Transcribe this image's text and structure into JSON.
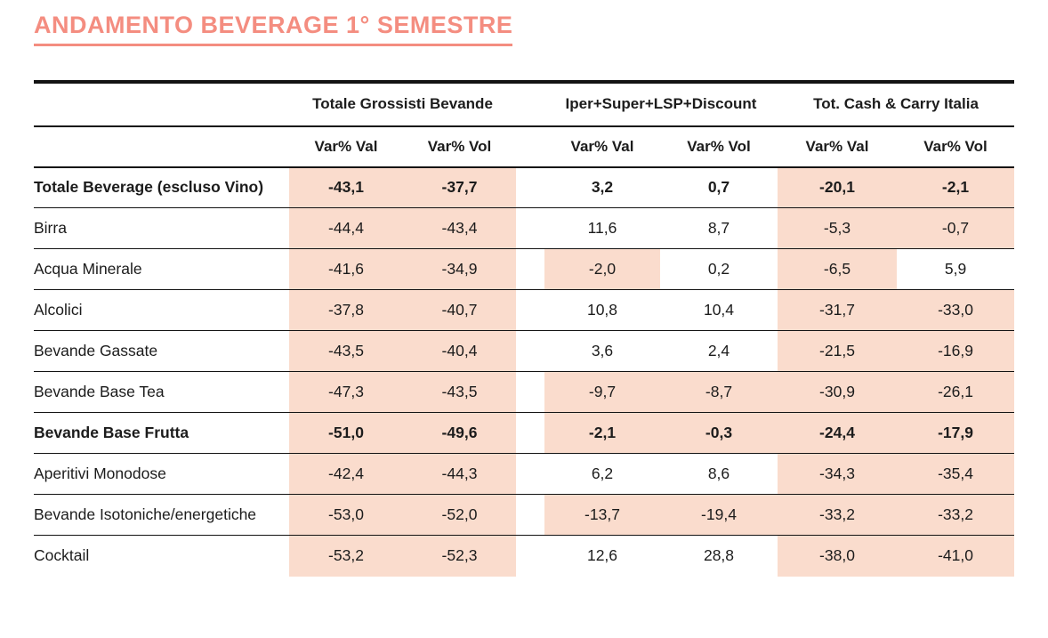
{
  "page_title": "ANDAMENTO BEVERAGE 1° SEMESTRE",
  "colors": {
    "accent_title": "#F48D80",
    "negative_highlight": "#FADCCD",
    "rule": "#131313",
    "text": "#1C1C1C"
  },
  "chart_data": {
    "type": "table",
    "title": "ANDAMENTO BEVERAGE 1° SEMESTRE",
    "decimal_separator": "comma",
    "highlight_rule": "cells with negative values have a peach background",
    "column_groups": [
      {
        "label": "Totale Grossisti Bevande",
        "subcolumns": [
          "Var% Val",
          "Var% Vol"
        ]
      },
      {
        "label": "Iper+Super+LSP+Discount",
        "subcolumns": [
          "Var% Val",
          "Var% Vol"
        ]
      },
      {
        "label": "Tot. Cash & Carry Italia",
        "subcolumns": [
          "Var% Val",
          "Var% Vol"
        ]
      }
    ],
    "rows": [
      {
        "label": "Totale Beverage (escluso Vino)",
        "bold": true,
        "values": [
          "-43,1",
          "-37,7",
          "3,2",
          "0,7",
          "-20,1",
          "-2,1"
        ]
      },
      {
        "label": "Birra",
        "bold": false,
        "values": [
          "-44,4",
          "-43,4",
          "11,6",
          "8,7",
          "-5,3",
          "-0,7"
        ]
      },
      {
        "label": "Acqua Minerale",
        "bold": false,
        "values": [
          "-41,6",
          "-34,9",
          "-2,0",
          "0,2",
          "-6,5",
          "5,9"
        ]
      },
      {
        "label": "Alcolici",
        "bold": false,
        "values": [
          "-37,8",
          "-40,7",
          "10,8",
          "10,4",
          "-31,7",
          "-33,0"
        ]
      },
      {
        "label": "Bevande Gassate",
        "bold": false,
        "values": [
          "-43,5",
          "-40,4",
          "3,6",
          "2,4",
          "-21,5",
          "-16,9"
        ]
      },
      {
        "label": "Bevande Base Tea",
        "bold": false,
        "values": [
          "-47,3",
          "-43,5",
          "-9,7",
          "-8,7",
          "-30,9",
          "-26,1"
        ]
      },
      {
        "label": "Bevande Base Frutta",
        "bold": true,
        "values": [
          "-51,0",
          "-49,6",
          "-2,1",
          "-0,3",
          "-24,4",
          "-17,9"
        ]
      },
      {
        "label": "Aperitivi Monodose",
        "bold": false,
        "values": [
          "-42,4",
          "-44,3",
          "6,2",
          "8,6",
          "-34,3",
          "-35,4"
        ]
      },
      {
        "label": "Bevande Isotoniche/energetiche",
        "bold": false,
        "values": [
          "-53,0",
          "-52,0",
          "-13,7",
          "-19,4",
          "-33,2",
          "-33,2"
        ]
      },
      {
        "label": "Cocktail",
        "bold": false,
        "values": [
          "-53,2",
          "-52,3",
          "12,6",
          "28,8",
          "-38,0",
          "-41,0"
        ]
      }
    ]
  }
}
